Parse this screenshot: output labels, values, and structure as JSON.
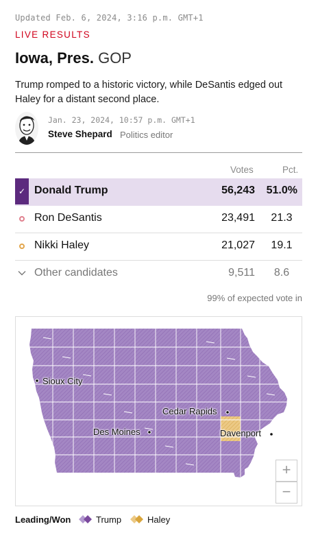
{
  "updated": "Updated Feb. 6, 2024, 3:16 p.m. GMT+1",
  "live_label": "LIVE RESULTS",
  "race": {
    "state": "Iowa, Pres.",
    "party": "GOP"
  },
  "dek": "Trump romped to a historic victory, while DeSantis edged out Haley for a distant second place.",
  "byline": {
    "date": "Jan. 23, 2024, 10:57 p.m. GMT+1",
    "name": "Steve Shepard",
    "role": "Politics editor"
  },
  "table": {
    "col_votes": "Votes",
    "col_pct": "Pct.",
    "rows": [
      {
        "name": "Donald Trump",
        "votes": "56,243",
        "pct": "51.0%",
        "winner": true,
        "color": "#5c2a7e"
      },
      {
        "name": "Ron DeSantis",
        "votes": "23,491",
        "pct": "21.3",
        "color": "#e0808e"
      },
      {
        "name": "Nikki Haley",
        "votes": "21,027",
        "pct": "19.1",
        "color": "#e3a64b"
      }
    ],
    "other": {
      "name": "Other candidates",
      "votes": "9,511",
      "pct": "8.6"
    },
    "expected": "99% of expected vote in"
  },
  "map": {
    "cities": [
      "Sioux City",
      "Cedar Rapids",
      "Des Moines",
      "Davenport"
    ],
    "zoom_in": "+",
    "zoom_out": "−",
    "colors": {
      "trump": "#a487c4",
      "trump_border": "#ffffff",
      "haley": "#e6c27a"
    }
  },
  "legend": {
    "label": "Leading/Won",
    "items": [
      {
        "name": "Trump",
        "color": "#7b4a9e"
      },
      {
        "name": "Haley",
        "color": "#d9a53c"
      }
    ]
  }
}
